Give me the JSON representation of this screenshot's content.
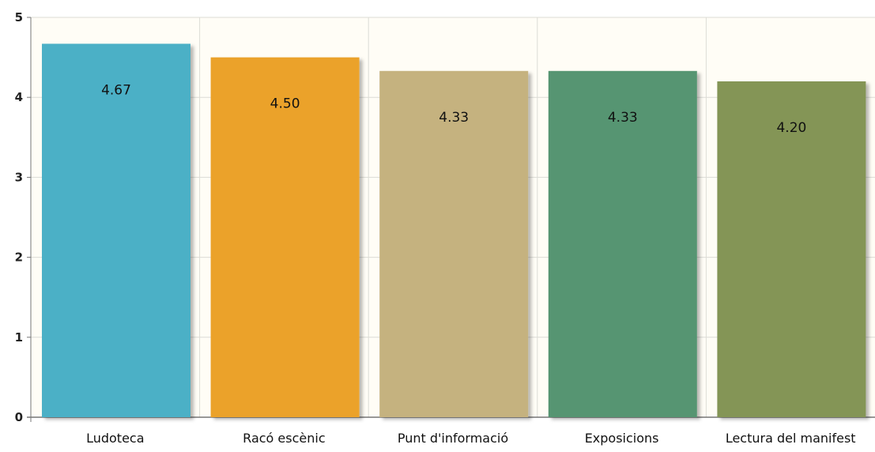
{
  "chart_data": {
    "type": "bar",
    "title": "",
    "xlabel": "",
    "ylabel": "",
    "categories": [
      "Ludoteca",
      "Racó escènic",
      "Punt d'informació",
      "Exposicions",
      "Lectura del manifest"
    ],
    "values": [
      4.67,
      4.5,
      4.33,
      4.33,
      4.2
    ],
    "value_labels": [
      "4.67",
      "4.50",
      "4.33",
      "4.33",
      "4.20"
    ],
    "colors": [
      "#4bb0c6",
      "#eba22b",
      "#c5b27f",
      "#579572",
      "#849557"
    ],
    "ylim": [
      0,
      5
    ],
    "yticks": [
      "0",
      "1",
      "2",
      "3",
      "4",
      "5"
    ],
    "grid": true,
    "plot_background": "#fffdf6",
    "gridline_color": "#dcdcd6",
    "axis_color": "#777777",
    "legend": "none"
  }
}
